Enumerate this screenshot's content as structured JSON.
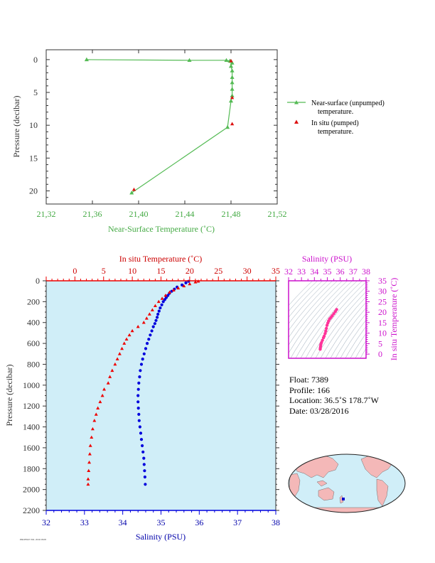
{
  "chart_data": [
    {
      "type": "line",
      "xlabel": "Near-Surface Temperature (˚C)",
      "ylabel": "Pressure (decibar)",
      "xlim": [
        21.32,
        21.52
      ],
      "ylim": [
        22,
        -1.5
      ],
      "x_ticks": [
        "21,32",
        "21,36",
        "21,40",
        "21,44",
        "21,48",
        "21,52"
      ],
      "y_ticks": [
        "0",
        "5",
        "10",
        "15",
        "20"
      ],
      "colors": {
        "axis": "#44aa44",
        "line": "#55bb55",
        "insitu": "#dd1111"
      },
      "legend_position": "right",
      "series": [
        {
          "name": "Near-surface (unpumped) temperature.",
          "marker": "triangle",
          "points": [
            [
              21.355,
              0.0
            ],
            [
              21.444,
              0.1
            ],
            [
              21.476,
              0.1
            ],
            [
              21.479,
              0.2
            ],
            [
              21.48,
              0.25
            ],
            [
              21.481,
              0.5
            ],
            [
              21.48,
              1.0
            ],
            [
              21.481,
              1.7
            ],
            [
              21.481,
              2.7
            ],
            [
              21.481,
              3.5
            ],
            [
              21.481,
              4.5
            ],
            [
              21.481,
              5.5
            ],
            [
              21.48,
              6.3
            ],
            [
              21.477,
              10.3
            ],
            [
              21.394,
              20.3
            ]
          ]
        },
        {
          "name": "In situ (pumped) temperature.",
          "marker": "triangle",
          "points": [
            [
              21.48,
              0.2
            ],
            [
              21.481,
              5.8
            ],
            [
              21.481,
              9.8
            ],
            [
              21.396,
              19.8
            ]
          ]
        }
      ]
    },
    {
      "type": "scatter",
      "ylabel": "Pressure (decibar)",
      "top_axis_label": "In situ Temperature (˚C)",
      "bottom_axis_label": "Salinity (PSU)",
      "temp_lim": [
        -5,
        35
      ],
      "sal_lim": [
        32,
        38
      ],
      "ylim": [
        2200,
        0
      ],
      "temp_ticks": [
        "0",
        "5",
        "10",
        "15",
        "20",
        "25",
        "30",
        "35"
      ],
      "sal_ticks": [
        "32",
        "33",
        "34",
        "35",
        "36",
        "37",
        "38"
      ],
      "y_ticks": [
        "0",
        "200",
        "400",
        "600",
        "800",
        "1000",
        "1200",
        "1400",
        "1600",
        "1800",
        "2000",
        "2200"
      ],
      "colors": {
        "temperature": "#ee0000",
        "salinity": "#0000dd",
        "background": "#d0eef8",
        "pressure_axis": "#333333"
      },
      "temperature_profile": [
        [
          21.5,
          5
        ],
        [
          21.0,
          12
        ],
        [
          20.0,
          30
        ],
        [
          19.0,
          50
        ],
        [
          18.0,
          70
        ],
        [
          17.2,
          90
        ],
        [
          16.5,
          110
        ],
        [
          15.8,
          140
        ],
        [
          15.2,
          170
        ],
        [
          14.6,
          200
        ],
        [
          14.0,
          240
        ],
        [
          13.5,
          280
        ],
        [
          13.0,
          320
        ],
        [
          12.5,
          360
        ],
        [
          12.0,
          400
        ],
        [
          11.0,
          440
        ],
        [
          10.0,
          480
        ],
        [
          9.5,
          520
        ],
        [
          9.0,
          560
        ],
        [
          8.6,
          600
        ],
        [
          8.2,
          650
        ],
        [
          7.8,
          700
        ],
        [
          7.4,
          750
        ],
        [
          7.0,
          800
        ],
        [
          6.5,
          860
        ],
        [
          6.1,
          920
        ],
        [
          5.8,
          980
        ],
        [
          5.1,
          1040
        ],
        [
          4.8,
          1100
        ],
        [
          4.4,
          1160
        ],
        [
          4.0,
          1220
        ],
        [
          3.7,
          1280
        ],
        [
          3.4,
          1340
        ],
        [
          3.1,
          1420
        ],
        [
          2.9,
          1500
        ],
        [
          2.7,
          1580
        ],
        [
          2.6,
          1660
        ],
        [
          2.5,
          1740
        ],
        [
          2.4,
          1820
        ],
        [
          2.3,
          1900
        ],
        [
          2.3,
          1950
        ]
      ],
      "salinity_profile": [
        [
          35.72,
          5
        ],
        [
          35.65,
          20
        ],
        [
          35.55,
          40
        ],
        [
          35.42,
          60
        ],
        [
          35.35,
          80
        ],
        [
          35.28,
          100
        ],
        [
          35.22,
          120
        ],
        [
          35.18,
          140
        ],
        [
          35.14,
          160
        ],
        [
          35.1,
          180
        ],
        [
          35.06,
          200
        ],
        [
          35.02,
          230
        ],
        [
          34.98,
          260
        ],
        [
          34.95,
          290
        ],
        [
          34.92,
          320
        ],
        [
          34.9,
          350
        ],
        [
          34.87,
          380
        ],
        [
          34.84,
          410
        ],
        [
          34.8,
          440
        ],
        [
          34.76,
          480
        ],
        [
          34.72,
          520
        ],
        [
          34.68,
          560
        ],
        [
          34.64,
          600
        ],
        [
          34.6,
          650
        ],
        [
          34.56,
          700
        ],
        [
          34.52,
          750
        ],
        [
          34.49,
          800
        ],
        [
          34.46,
          860
        ],
        [
          34.44,
          920
        ],
        [
          34.42,
          980
        ],
        [
          34.41,
          1040
        ],
        [
          34.4,
          1100
        ],
        [
          34.4,
          1160
        ],
        [
          34.41,
          1220
        ],
        [
          34.42,
          1280
        ],
        [
          34.43,
          1340
        ],
        [
          34.45,
          1400
        ],
        [
          34.47,
          1460
        ],
        [
          34.49,
          1520
        ],
        [
          34.51,
          1580
        ],
        [
          34.53,
          1640
        ],
        [
          34.55,
          1700
        ],
        [
          34.56,
          1760
        ],
        [
          34.57,
          1820
        ],
        [
          34.58,
          1880
        ],
        [
          34.59,
          1950
        ]
      ]
    },
    {
      "type": "scatter",
      "top_axis_label": "Salinity (PSU)",
      "right_axis_label": "In situ Temperature (˚C)",
      "sal_lim": [
        32,
        38
      ],
      "temp_lim": [
        -2,
        35
      ],
      "sal_ticks": [
        "32",
        "33",
        "34",
        "35",
        "36",
        "37",
        "38"
      ],
      "temp_ticks": [
        "0",
        "5",
        "10",
        "15",
        "20",
        "25",
        "30",
        "35"
      ],
      "colors": {
        "axis": "#cc11cc",
        "points": "#ff3399",
        "contours": "#8899aa"
      },
      "ts_points": [
        [
          34.45,
          2.3
        ],
        [
          34.46,
          3.0
        ],
        [
          34.48,
          3.8
        ],
        [
          34.5,
          4.6
        ],
        [
          34.55,
          5.5
        ],
        [
          34.62,
          6.6
        ],
        [
          34.7,
          7.8
        ],
        [
          34.76,
          8.6
        ],
        [
          34.83,
          9.8
        ],
        [
          34.88,
          11.0
        ],
        [
          34.93,
          12.3
        ],
        [
          34.98,
          13.7
        ],
        [
          35.04,
          14.8
        ],
        [
          35.1,
          15.8
        ],
        [
          35.18,
          16.8
        ],
        [
          35.28,
          17.5
        ],
        [
          35.38,
          18.3
        ],
        [
          35.5,
          19.3
        ],
        [
          35.62,
          20.3
        ],
        [
          35.72,
          21.3
        ]
      ]
    }
  ],
  "info": {
    "float": "Float:  7389",
    "profile": "Profile:  166",
    "location": "Location:  36.5˚S  178.7˚W",
    "date": "Date:  03/28/2016"
  },
  "footer": {
    "note": "PROFILE NO. 2016 0328"
  },
  "map": {
    "land_color": "#f4b8b8",
    "ocean_color": "#d0eef8",
    "marker_color": "#0000cc"
  }
}
